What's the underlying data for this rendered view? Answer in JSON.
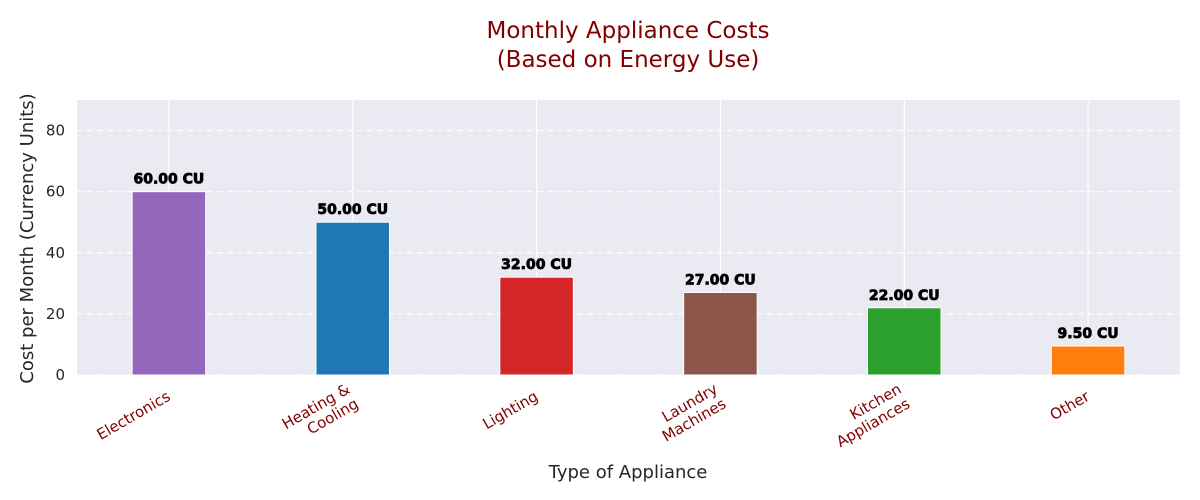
{
  "chart_data": {
    "type": "bar",
    "title_lines": [
      "Monthly Appliance Costs",
      "(Based on Energy Use)"
    ],
    "xlabel": "Type of Appliance",
    "ylabel": "Cost per Month (Currency Units)",
    "ylim": [
      0,
      90
    ],
    "yticks": [
      "0",
      "20",
      "40",
      "60",
      "80"
    ],
    "grid": true,
    "categories": [
      [
        "Electronics"
      ],
      [
        "Heating &",
        "Cooling"
      ],
      [
        "Lighting"
      ],
      [
        "Laundry",
        "Machines"
      ],
      [
        "Kitchen",
        "Appliances"
      ],
      [
        "Other"
      ]
    ],
    "values": [
      60.0,
      50.0,
      32.0,
      27.0,
      22.0,
      9.5
    ],
    "data_labels": [
      "60.00 CU",
      "50.00 CU",
      "32.00 CU",
      "27.00 CU",
      "22.00 CU",
      "9.50 CU"
    ],
    "colors": [
      "#9467bd",
      "#1f77b4",
      "#d62728",
      "#8c564b",
      "#2ca02c",
      "#ff7f0e"
    ],
    "background_color": "#eaeaf2",
    "title_color": "#800000",
    "category_label_color": "#800000"
  }
}
